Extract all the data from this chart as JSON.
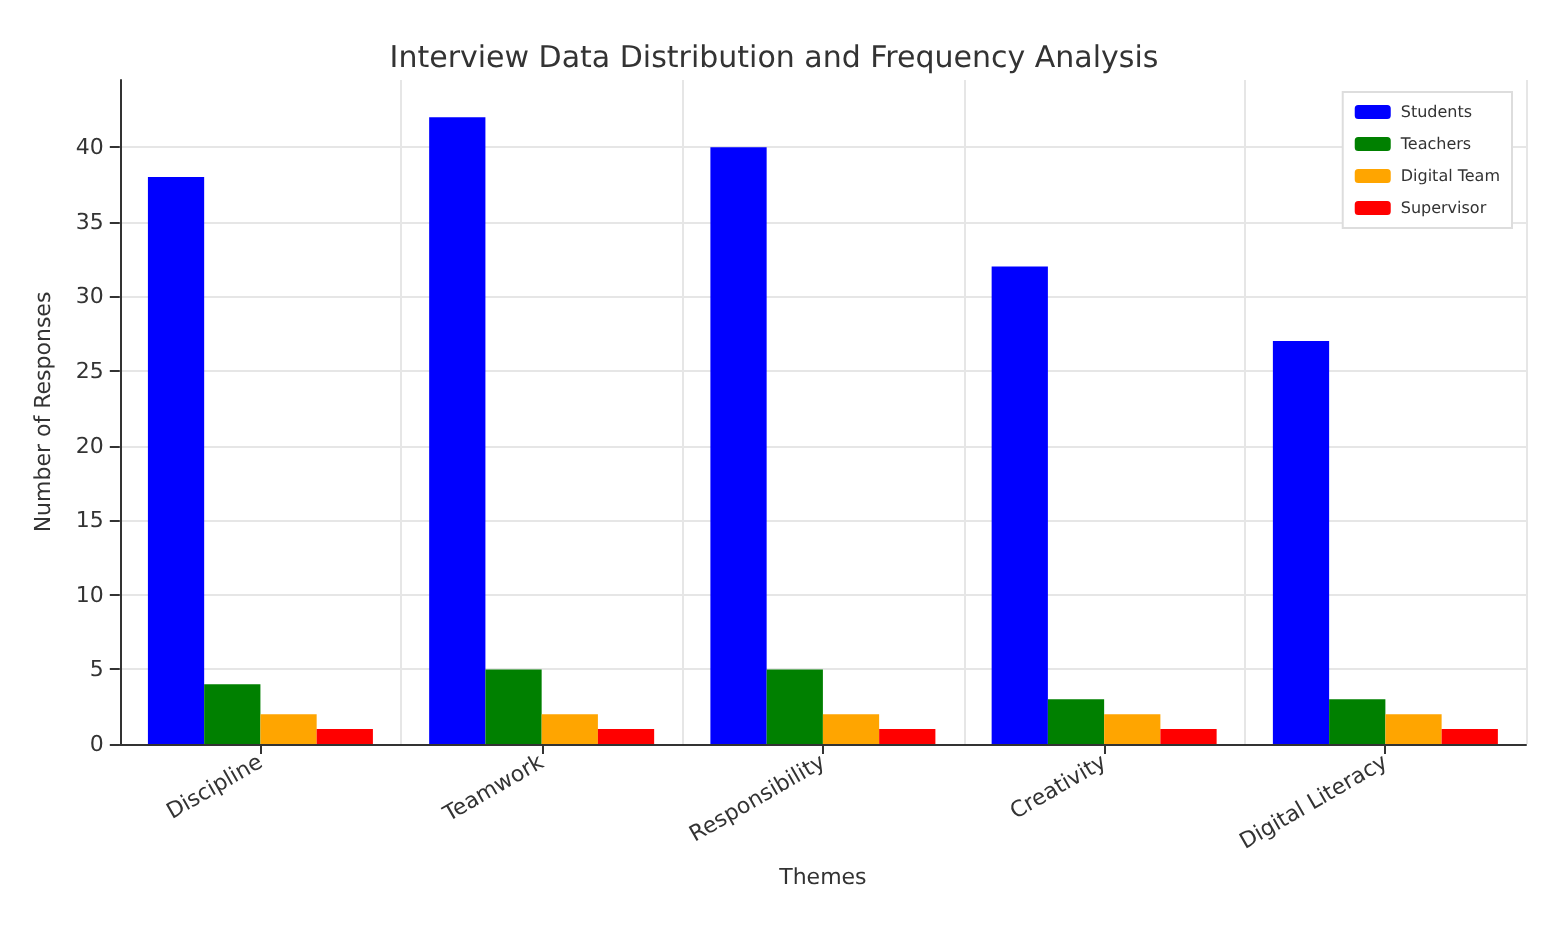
{
  "chart_data": {
    "type": "bar",
    "title": "Interview Data Distribution and Frequency Analysis",
    "xlabel": "Themes",
    "ylabel": "Number of Responses",
    "categories": [
      "Discipline",
      "Teamwork",
      "Responsibility",
      "Creativity",
      "Digital Literacy"
    ],
    "series": [
      {
        "name": "Students",
        "color": "#0000ff",
        "values": [
          38,
          42,
          40,
          32,
          27
        ]
      },
      {
        "name": "Teachers",
        "color": "#008000",
        "values": [
          4,
          5,
          5,
          3,
          3
        ]
      },
      {
        "name": "Digital Team",
        "color": "#ffa500",
        "values": [
          2,
          2,
          2,
          2,
          2
        ]
      },
      {
        "name": "Supervisor",
        "color": "#ff0000",
        "values": [
          1,
          1,
          1,
          1,
          1
        ]
      }
    ],
    "ylim": [
      0,
      44.5
    ],
    "yticks": [
      0,
      5,
      10,
      15,
      20,
      25,
      30,
      35,
      40
    ],
    "grid": true,
    "legend": "top right"
  }
}
